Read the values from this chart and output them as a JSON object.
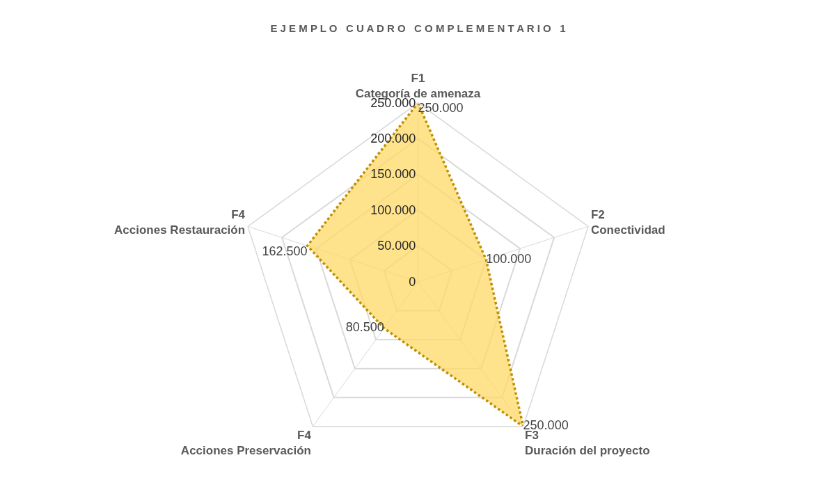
{
  "chart_data": {
    "type": "radar",
    "title": "E J E M P L O   C U A D R O   C O M P L E M E N T A R I O   1",
    "categories": [
      "F1\nCategoría de amenaza",
      "F2\nConectividad",
      "F3\nDuración del proyecto",
      "F4\nAcciones Preservación",
      "F4\nAcciones Restauración"
    ],
    "series": [
      {
        "color": "#bf9000",
        "values": [
          250000,
          100000,
          250000,
          80500,
          162500
        ],
        "value_labels": [
          "250.000",
          "100.000",
          "250.000",
          "80.500",
          "162.500"
        ]
      }
    ],
    "ylim": [
      0,
      250000
    ],
    "yticks": [
      {
        "value": 0,
        "label": "0"
      },
      {
        "value": 50000,
        "label": "50.000"
      },
      {
        "value": 100000,
        "label": "100.000"
      },
      {
        "value": 150000,
        "label": "150.000"
      },
      {
        "value": 200000,
        "label": "200.000"
      },
      {
        "value": 250000,
        "label": "250.000"
      }
    ],
    "grid": true,
    "marker": "none",
    "line_style": "dotted"
  }
}
